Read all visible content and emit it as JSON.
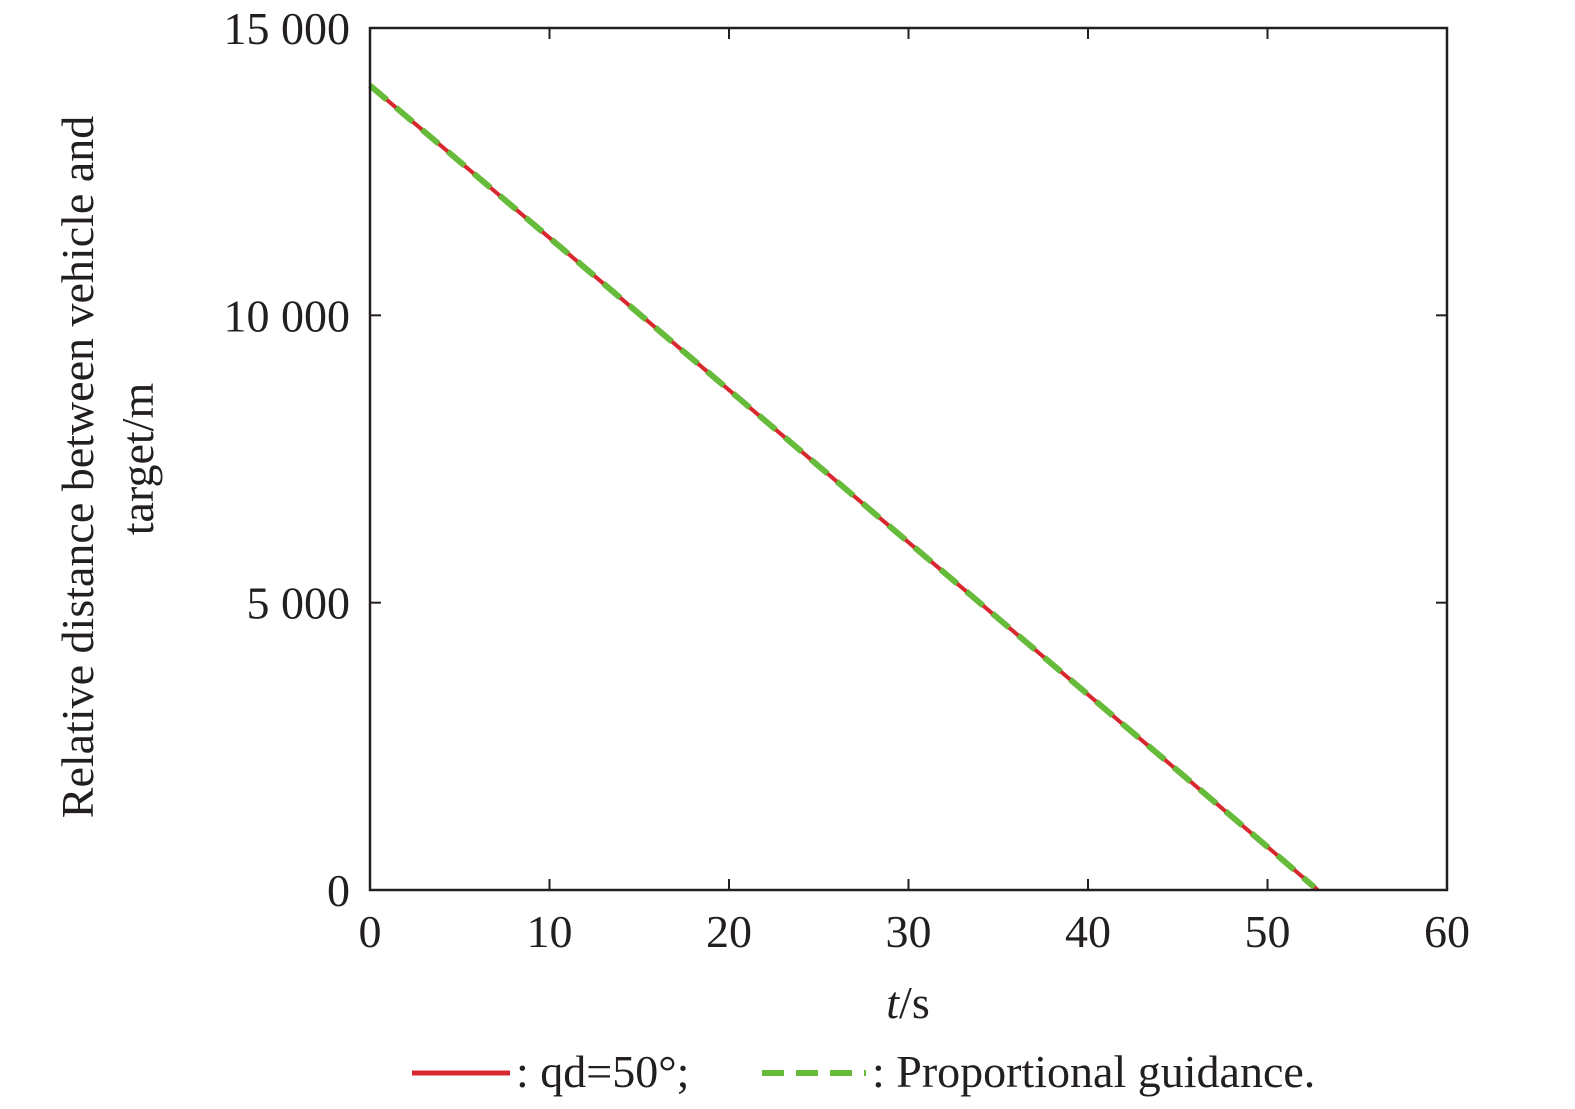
{
  "chart_data": {
    "type": "line",
    "xlabel_italic": "t",
    "xlabel_unit": "/s",
    "ylabel_lines": [
      "Relative distance between vehicle and",
      "target/m"
    ],
    "xlim": [
      0,
      60
    ],
    "ylim": [
      0,
      15000
    ],
    "xticks": [
      0,
      10,
      20,
      30,
      40,
      50,
      60
    ],
    "xtick_labels": [
      "0",
      "10",
      "20",
      "30",
      "40",
      "50",
      "60"
    ],
    "yticks": [
      0,
      5000,
      10000,
      15000
    ],
    "ytick_labels": [
      "0",
      "5 000",
      "10 000",
      "15 000"
    ],
    "grid": false,
    "legend_position": "bottom",
    "series": [
      {
        "name": ": qd=50°;",
        "color": "#d7282f",
        "style": "solid",
        "x": [
          0,
          10,
          20,
          30,
          40,
          50,
          52.8
        ],
        "y": [
          14000,
          11350,
          8700,
          6050,
          3400,
          750,
          0
        ]
      },
      {
        "name": ": Proportional guidance.",
        "color": "#66bb3a",
        "style": "dashed",
        "x": [
          0,
          10,
          20,
          30,
          40,
          50,
          52.6
        ],
        "y": [
          14000,
          11350,
          8700,
          6050,
          3400,
          750,
          50
        ]
      }
    ]
  }
}
